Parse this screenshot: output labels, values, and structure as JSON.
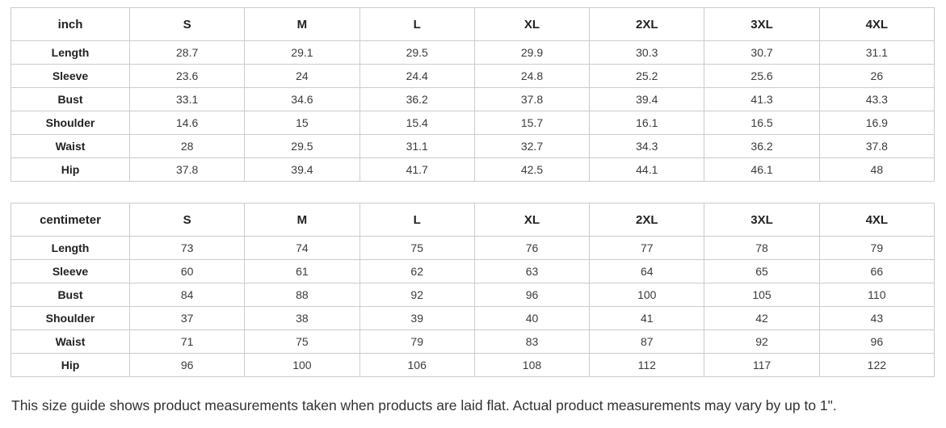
{
  "note": "This size guide shows product measurements taken when products are laid flat. Actual product measurements may vary by up to 1\".",
  "colors": {
    "border": "#cccccc",
    "header_text": "#222222",
    "cell_text": "#3b3b3b",
    "background": "#ffffff"
  },
  "tables": [
    {
      "unit_label": "inch",
      "sizes": [
        "S",
        "M",
        "L",
        "XL",
        "2XL",
        "3XL",
        "4XL"
      ],
      "rows": [
        {
          "label": "Length",
          "values": [
            "28.7",
            "29.1",
            "29.5",
            "29.9",
            "30.3",
            "30.7",
            "31.1"
          ]
        },
        {
          "label": "Sleeve",
          "values": [
            "23.6",
            "24",
            "24.4",
            "24.8",
            "25.2",
            "25.6",
            "26"
          ]
        },
        {
          "label": "Bust",
          "values": [
            "33.1",
            "34.6",
            "36.2",
            "37.8",
            "39.4",
            "41.3",
            "43.3"
          ]
        },
        {
          "label": "Shoulder",
          "values": [
            "14.6",
            "15",
            "15.4",
            "15.7",
            "16.1",
            "16.5",
            "16.9"
          ]
        },
        {
          "label": "Waist",
          "values": [
            "28",
            "29.5",
            "31.1",
            "32.7",
            "34.3",
            "36.2",
            "37.8"
          ]
        },
        {
          "label": "Hip",
          "values": [
            "37.8",
            "39.4",
            "41.7",
            "42.5",
            "44.1",
            "46.1",
            "48"
          ]
        }
      ]
    },
    {
      "unit_label": "centimeter",
      "sizes": [
        "S",
        "M",
        "L",
        "XL",
        "2XL",
        "3XL",
        "4XL"
      ],
      "rows": [
        {
          "label": "Length",
          "values": [
            "73",
            "74",
            "75",
            "76",
            "77",
            "78",
            "79"
          ]
        },
        {
          "label": "Sleeve",
          "values": [
            "60",
            "61",
            "62",
            "63",
            "64",
            "65",
            "66"
          ]
        },
        {
          "label": "Bust",
          "values": [
            "84",
            "88",
            "92",
            "96",
            "100",
            "105",
            "110"
          ]
        },
        {
          "label": "Shoulder",
          "values": [
            "37",
            "38",
            "39",
            "40",
            "41",
            "42",
            "43"
          ]
        },
        {
          "label": "Waist",
          "values": [
            "71",
            "75",
            "79",
            "83",
            "87",
            "92",
            "96"
          ]
        },
        {
          "label": "Hip",
          "values": [
            "96",
            "100",
            "106",
            "108",
            "112",
            "117",
            "122"
          ]
        }
      ]
    }
  ]
}
